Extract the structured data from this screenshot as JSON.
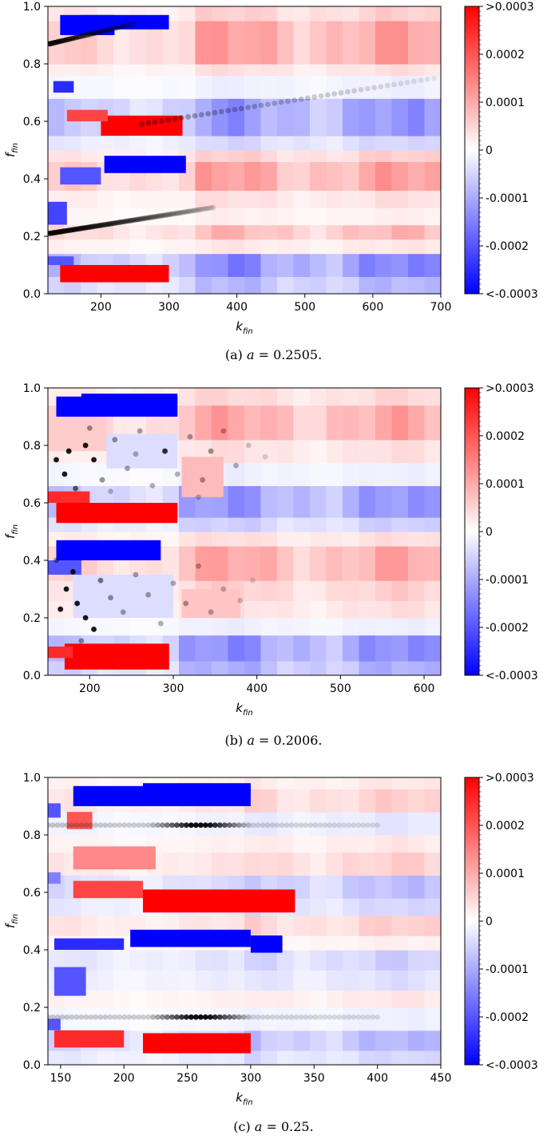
{
  "chart_data": [
    {
      "type": "heatmap",
      "caption_prefix": "(a)",
      "caption_var": "a",
      "caption_value": "= 0.2505.",
      "xlabel": "k",
      "xlabel_sub": "fin",
      "ylabel": "f",
      "ylabel_sub": "fin",
      "xlim": [
        122,
        700
      ],
      "ylim": [
        0,
        1
      ],
      "x_ticks": [
        200,
        300,
        400,
        500,
        600,
        700
      ],
      "y_ticks": [
        0.0,
        0.2,
        0.4,
        0.6,
        0.8,
        1.0
      ],
      "y_tick_labels": [
        "0.0",
        "0.2",
        "0.4",
        "0.6",
        "0.8",
        "1.0"
      ],
      "colorbar": {
        "min": -0.0003,
        "max": 0.0003,
        "ticks": [
          -0.0003,
          -0.0002,
          -0.0001,
          0,
          0.0001,
          0.0002,
          0.0003
        ],
        "tick_labels": [
          "<-0.0003",
          "-0.0002",
          "-0.0001",
          "0",
          "0.0001",
          "0.0002",
          ">0.0003"
        ],
        "low_color": "#0000ff",
        "mid_color": "#ffffff",
        "high_color": "#ff0000"
      },
      "boundary_k": 335,
      "bands": [
        {
          "y0": 0.0,
          "y1": 0.06,
          "value": -9e-05
        },
        {
          "y0": 0.06,
          "y1": 0.14,
          "value": -0.00015
        },
        {
          "y0": 0.14,
          "y1": 0.19,
          "value": 3e-05
        },
        {
          "y0": 0.19,
          "y1": 0.24,
          "value": 9e-05
        },
        {
          "y0": 0.24,
          "y1": 0.3,
          "value": 2e-05
        },
        {
          "y0": 0.3,
          "y1": 0.36,
          "value": 4e-05
        },
        {
          "y0": 0.36,
          "y1": 0.46,
          "value": 0.00012
        },
        {
          "y0": 0.46,
          "y1": 0.5,
          "value": 6e-05
        },
        {
          "y0": 0.5,
          "y1": 0.55,
          "value": -5e-05
        },
        {
          "y0": 0.55,
          "y1": 0.68,
          "value": -0.00013
        },
        {
          "y0": 0.68,
          "y1": 0.76,
          "value": -2e-05
        },
        {
          "y0": 0.76,
          "y1": 0.8,
          "value": 4e-05
        },
        {
          "y0": 0.8,
          "y1": 0.95,
          "value": 0.00012
        },
        {
          "y0": 0.95,
          "y1": 1.0,
          "value": 6e-05
        }
      ],
      "left_blocks": [
        {
          "x0": 140,
          "x1": 220,
          "y0": 0.9,
          "y1": 0.97,
          "value": -0.0003
        },
        {
          "x0": 170,
          "x1": 300,
          "y0": 0.92,
          "y1": 0.97,
          "value": -0.0003
        },
        {
          "x0": 130,
          "x1": 160,
          "y0": 0.7,
          "y1": 0.74,
          "value": -0.00025
        },
        {
          "x0": 200,
          "x1": 320,
          "y0": 0.55,
          "y1": 0.62,
          "value": 0.0003
        },
        {
          "x0": 150,
          "x1": 210,
          "y0": 0.6,
          "y1": 0.64,
          "value": 0.00022
        },
        {
          "x0": 205,
          "x1": 325,
          "y0": 0.42,
          "y1": 0.48,
          "value": -0.0003
        },
        {
          "x0": 140,
          "x1": 200,
          "y0": 0.38,
          "y1": 0.44,
          "value": -0.0002
        },
        {
          "x0": 122,
          "x1": 150,
          "y0": 0.24,
          "y1": 0.32,
          "value": -0.00022
        },
        {
          "x0": 140,
          "x1": 300,
          "y0": 0.04,
          "y1": 0.1,
          "value": 0.0003
        },
        {
          "x0": 122,
          "x1": 160,
          "y0": 0.1,
          "y1": 0.13,
          "value": -0.0002
        }
      ],
      "point_lines": [
        {
          "k0": 125,
          "f0": 0.21,
          "k1": 365,
          "f1": 0.3,
          "n": 70,
          "opacity_start": 0.9,
          "opacity_end": 0.15
        },
        {
          "k0": 125,
          "f0": 0.87,
          "k1": 250,
          "f1": 0.94,
          "n": 35,
          "opacity_start": 0.9,
          "opacity_end": 0.15
        },
        {
          "k0": 260,
          "f0": 0.59,
          "k1": 690,
          "f1": 0.75,
          "n": 45,
          "opacity_start": 0.35,
          "opacity_end": 0.08
        }
      ],
      "point_scatter": []
    },
    {
      "type": "heatmap",
      "caption_prefix": "(b)",
      "caption_var": "a",
      "caption_value": "= 0.2006.",
      "xlabel": "k",
      "xlabel_sub": "fin",
      "ylabel": "f",
      "ylabel_sub": "fin",
      "xlim": [
        150,
        620
      ],
      "ylim": [
        0,
        1
      ],
      "x_ticks": [
        200,
        300,
        400,
        500,
        600
      ],
      "y_ticks": [
        0.0,
        0.2,
        0.4,
        0.6,
        0.8,
        1.0
      ],
      "y_tick_labels": [
        "0.0",
        "0.2",
        "0.4",
        "0.6",
        "0.8",
        "1.0"
      ],
      "colorbar": {
        "min": -0.0003,
        "max": 0.0003,
        "ticks": [
          -0.0003,
          -0.0002,
          -0.0001,
          0,
          0.0001,
          0.0002,
          0.0003
        ],
        "tick_labels": [
          "<-0.0003",
          "-0.0002",
          "-0.0001",
          "0",
          "0.0001",
          "0.0002",
          ">0.0003"
        ],
        "low_color": "#0000ff",
        "mid_color": "#ffffff",
        "high_color": "#ff0000"
      },
      "boundary_k": 305,
      "bands": [
        {
          "y0": 0.0,
          "y1": 0.05,
          "value": -0.0001
        },
        {
          "y0": 0.05,
          "y1": 0.14,
          "value": -0.00014
        },
        {
          "y0": 0.14,
          "y1": 0.2,
          "value": -2e-05
        },
        {
          "y0": 0.2,
          "y1": 0.26,
          "value": 4e-05
        },
        {
          "y0": 0.26,
          "y1": 0.33,
          "value": 6e-05
        },
        {
          "y0": 0.33,
          "y1": 0.45,
          "value": 0.00011
        },
        {
          "y0": 0.45,
          "y1": 0.5,
          "value": 4e-05
        },
        {
          "y0": 0.5,
          "y1": 0.55,
          "value": -6e-05
        },
        {
          "y0": 0.55,
          "y1": 0.66,
          "value": -0.00013
        },
        {
          "y0": 0.66,
          "y1": 0.74,
          "value": -2e-05
        },
        {
          "y0": 0.74,
          "y1": 0.82,
          "value": 4e-05
        },
        {
          "y0": 0.82,
          "y1": 0.94,
          "value": 0.00011
        },
        {
          "y0": 0.94,
          "y1": 1.0,
          "value": 5e-05
        }
      ],
      "left_blocks": [
        {
          "x0": 160,
          "x1": 305,
          "y0": 0.9,
          "y1": 0.97,
          "value": -0.0003
        },
        {
          "x0": 190,
          "x1": 305,
          "y0": 0.95,
          "y1": 0.98,
          "value": -0.0003
        },
        {
          "x0": 150,
          "x1": 220,
          "y0": 0.78,
          "y1": 0.9,
          "value": 6e-05
        },
        {
          "x0": 220,
          "x1": 305,
          "y0": 0.72,
          "y1": 0.84,
          "value": -4e-05
        },
        {
          "x0": 310,
          "x1": 360,
          "y0": 0.62,
          "y1": 0.76,
          "value": 8e-05
        },
        {
          "x0": 160,
          "x1": 305,
          "y0": 0.53,
          "y1": 0.6,
          "value": 0.0003
        },
        {
          "x0": 150,
          "x1": 200,
          "y0": 0.6,
          "y1": 0.64,
          "value": 0.00025
        },
        {
          "x0": 160,
          "x1": 285,
          "y0": 0.4,
          "y1": 0.47,
          "value": -0.0003
        },
        {
          "x0": 150,
          "x1": 190,
          "y0": 0.35,
          "y1": 0.4,
          "value": -0.0002
        },
        {
          "x0": 180,
          "x1": 300,
          "y0": 0.2,
          "y1": 0.35,
          "value": -4e-05
        },
        {
          "x0": 310,
          "x1": 380,
          "y0": 0.2,
          "y1": 0.3,
          "value": 7e-05
        },
        {
          "x0": 170,
          "x1": 295,
          "y0": 0.02,
          "y1": 0.11,
          "value": 0.0003
        },
        {
          "x0": 150,
          "x1": 180,
          "y0": 0.06,
          "y1": 0.1,
          "value": 0.00025
        }
      ],
      "point_lines": [],
      "point_scatter": [
        {
          "k": 160,
          "f": 0.75,
          "o": 0.9
        },
        {
          "k": 170,
          "f": 0.7,
          "o": 0.9
        },
        {
          "k": 175,
          "f": 0.78,
          "o": 0.9
        },
        {
          "k": 183,
          "f": 0.65,
          "o": 0.6
        },
        {
          "k": 195,
          "f": 0.8,
          "o": 0.9
        },
        {
          "k": 205,
          "f": 0.75,
          "o": 0.9
        },
        {
          "k": 215,
          "f": 0.68,
          "o": 0.4
        },
        {
          "k": 230,
          "f": 0.82,
          "o": 0.4
        },
        {
          "k": 245,
          "f": 0.72,
          "o": 0.35
        },
        {
          "k": 260,
          "f": 0.85,
          "o": 0.35
        },
        {
          "k": 275,
          "f": 0.66,
          "o": 0.3
        },
        {
          "k": 290,
          "f": 0.78,
          "o": 0.8
        },
        {
          "k": 305,
          "f": 0.7,
          "o": 0.3
        },
        {
          "k": 320,
          "f": 0.83,
          "o": 0.35
        },
        {
          "k": 335,
          "f": 0.68,
          "o": 0.35
        },
        {
          "k": 345,
          "f": 0.78,
          "o": 0.4
        },
        {
          "k": 360,
          "f": 0.85,
          "o": 0.3
        },
        {
          "k": 375,
          "f": 0.73,
          "o": 0.3
        },
        {
          "k": 390,
          "f": 0.8,
          "o": 0.2
        },
        {
          "k": 410,
          "f": 0.76,
          "o": 0.15
        },
        {
          "k": 330,
          "f": 0.62,
          "o": 0.25
        },
        {
          "k": 200,
          "f": 0.86,
          "o": 0.4
        },
        {
          "k": 225,
          "f": 0.64,
          "o": 0.25
        },
        {
          "k": 255,
          "f": 0.77,
          "o": 0.3
        },
        {
          "k": 165,
          "f": 0.23,
          "o": 0.9
        },
        {
          "k": 172,
          "f": 0.3,
          "o": 0.9
        },
        {
          "k": 180,
          "f": 0.36,
          "o": 0.9
        },
        {
          "k": 185,
          "f": 0.25,
          "o": 0.9
        },
        {
          "k": 195,
          "f": 0.2,
          "o": 0.9
        },
        {
          "k": 205,
          "f": 0.16,
          "o": 0.9
        },
        {
          "k": 213,
          "f": 0.33,
          "o": 0.5
        },
        {
          "k": 225,
          "f": 0.27,
          "o": 0.4
        },
        {
          "k": 240,
          "f": 0.22,
          "o": 0.35
        },
        {
          "k": 255,
          "f": 0.35,
          "o": 0.35
        },
        {
          "k": 270,
          "f": 0.28,
          "o": 0.35
        },
        {
          "k": 285,
          "f": 0.18,
          "o": 0.3
        },
        {
          "k": 300,
          "f": 0.32,
          "o": 0.3
        },
        {
          "k": 315,
          "f": 0.25,
          "o": 0.35
        },
        {
          "k": 330,
          "f": 0.38,
          "o": 0.3
        },
        {
          "k": 345,
          "f": 0.22,
          "o": 0.3
        },
        {
          "k": 360,
          "f": 0.3,
          "o": 0.25
        },
        {
          "k": 380,
          "f": 0.26,
          "o": 0.2
        },
        {
          "k": 395,
          "f": 0.33,
          "o": 0.15
        },
        {
          "k": 160,
          "f": 0.4,
          "o": 0.4
        },
        {
          "k": 190,
          "f": 0.12,
          "o": 0.4
        }
      ]
    },
    {
      "type": "heatmap",
      "caption_prefix": "(c)",
      "caption_var": "a",
      "caption_value": "= 0.25.",
      "xlabel": "k",
      "xlabel_sub": "fin",
      "ylabel": "f",
      "ylabel_sub": "fin",
      "xlim": [
        140,
        450
      ],
      "ylim": [
        0,
        1
      ],
      "x_ticks": [
        150,
        200,
        250,
        300,
        350,
        400,
        450
      ],
      "y_ticks": [
        0.0,
        0.2,
        0.4,
        0.6,
        0.8,
        1.0
      ],
      "y_tick_labels": [
        "0.0",
        "0.2",
        "0.4",
        "0.6",
        "0.8",
        "1.0"
      ],
      "colorbar": {
        "min": -0.0003,
        "max": 0.0003,
        "ticks": [
          -0.0003,
          -0.0002,
          -0.0001,
          0,
          0.0001,
          0.0002,
          0.0003
        ],
        "tick_labels": [
          "<-0.0003",
          "-0.0002",
          "-0.0001",
          "0",
          "0.0001",
          "0.0002",
          ">0.0003"
        ],
        "low_color": "#0000ff",
        "mid_color": "#ffffff",
        "high_color": "#ff0000"
      },
      "boundary_k": 300,
      "bands": [
        {
          "y0": 0.0,
          "y1": 0.05,
          "value": -5e-05
        },
        {
          "y0": 0.05,
          "y1": 0.12,
          "value": -9e-05
        },
        {
          "y0": 0.12,
          "y1": 0.2,
          "value": -2e-05
        },
        {
          "y0": 0.2,
          "y1": 0.26,
          "value": 3e-05
        },
        {
          "y0": 0.26,
          "y1": 0.33,
          "value": -4e-05
        },
        {
          "y0": 0.33,
          "y1": 0.4,
          "value": -6e-05
        },
        {
          "y0": 0.4,
          "y1": 0.45,
          "value": 2e-05
        },
        {
          "y0": 0.45,
          "y1": 0.52,
          "value": 6e-05
        },
        {
          "y0": 0.52,
          "y1": 0.58,
          "value": -5e-05
        },
        {
          "y0": 0.58,
          "y1": 0.66,
          "value": -8e-05
        },
        {
          "y0": 0.66,
          "y1": 0.74,
          "value": 6e-05
        },
        {
          "y0": 0.74,
          "y1": 0.8,
          "value": 3e-05
        },
        {
          "y0": 0.8,
          "y1": 0.88,
          "value": -3e-05
        },
        {
          "y0": 0.88,
          "y1": 0.96,
          "value": 6e-05
        },
        {
          "y0": 0.96,
          "y1": 1.0,
          "value": 3e-05
        }
      ],
      "left_blocks": [
        {
          "x0": 160,
          "x1": 300,
          "y0": 0.9,
          "y1": 0.97,
          "value": -0.0003
        },
        {
          "x0": 215,
          "x1": 300,
          "y0": 0.94,
          "y1": 0.98,
          "value": -0.0003
        },
        {
          "x0": 140,
          "x1": 150,
          "y0": 0.86,
          "y1": 0.91,
          "value": -0.0002
        },
        {
          "x0": 155,
          "x1": 175,
          "y0": 0.82,
          "y1": 0.88,
          "value": 0.0002
        },
        {
          "x0": 160,
          "x1": 225,
          "y0": 0.68,
          "y1": 0.76,
          "value": 0.00014
        },
        {
          "x0": 215,
          "x1": 335,
          "y0": 0.53,
          "y1": 0.61,
          "value": 0.0003
        },
        {
          "x0": 160,
          "x1": 215,
          "y0": 0.58,
          "y1": 0.64,
          "value": 0.00022
        },
        {
          "x0": 140,
          "x1": 150,
          "y0": 0.63,
          "y1": 0.67,
          "value": -0.00015
        },
        {
          "x0": 205,
          "x1": 300,
          "y0": 0.41,
          "y1": 0.47,
          "value": -0.0003
        },
        {
          "x0": 300,
          "x1": 325,
          "y0": 0.39,
          "y1": 0.45,
          "value": -0.0003
        },
        {
          "x0": 145,
          "x1": 200,
          "y0": 0.4,
          "y1": 0.44,
          "value": -0.00025
        },
        {
          "x0": 145,
          "x1": 170,
          "y0": 0.24,
          "y1": 0.34,
          "value": -0.0002
        },
        {
          "x0": 215,
          "x1": 300,
          "y0": 0.04,
          "y1": 0.11,
          "value": 0.0003
        },
        {
          "x0": 145,
          "x1": 200,
          "y0": 0.06,
          "y1": 0.12,
          "value": 0.00025
        },
        {
          "x0": 140,
          "x1": 150,
          "y0": 0.12,
          "y1": 0.16,
          "value": -0.0002
        }
      ],
      "point_lines": [
        {
          "k0": 140,
          "f0": 0.834,
          "k1": 400,
          "f1": 0.834,
          "n": 70,
          "opacity_start": 0.2,
          "opacity_end": 0.12,
          "peak_k": 260,
          "peak_width": 40
        },
        {
          "k0": 140,
          "f0": 0.166,
          "k1": 400,
          "f1": 0.166,
          "n": 70,
          "opacity_start": 0.2,
          "opacity_end": 0.12,
          "peak_k": 260,
          "peak_width": 40
        }
      ],
      "point_scatter": []
    }
  ]
}
